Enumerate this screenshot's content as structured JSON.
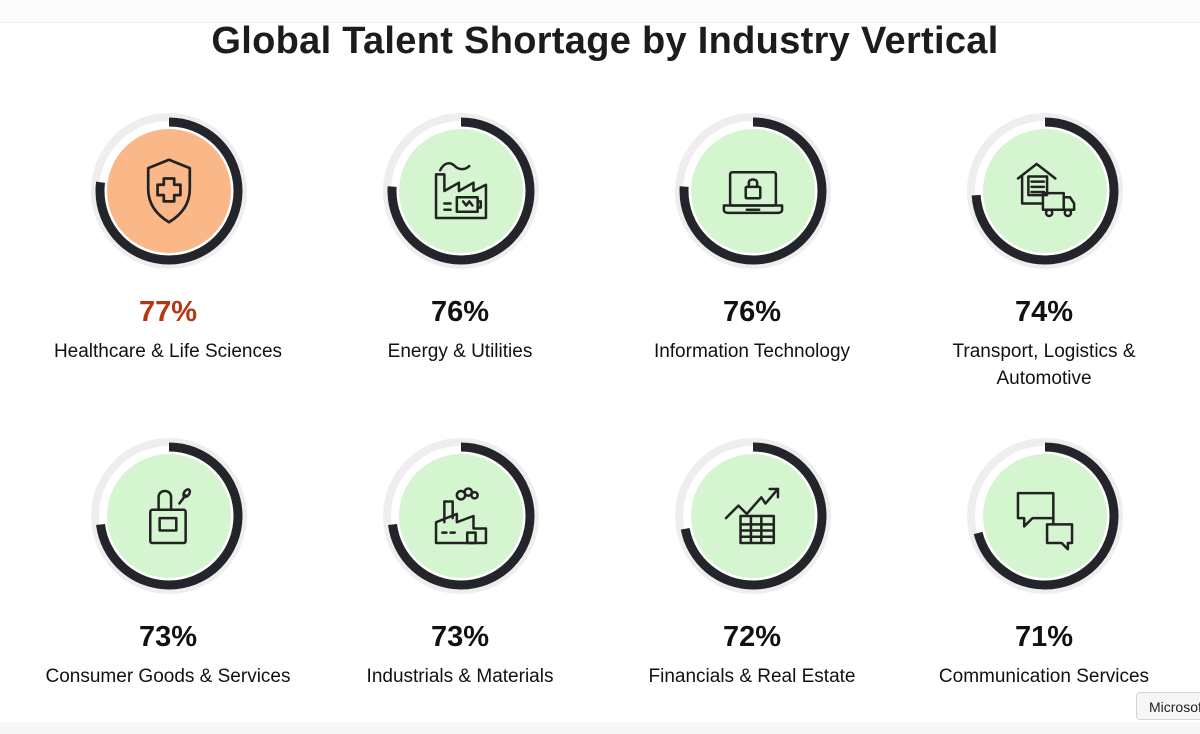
{
  "title": "Global Talent Shortage by Industry Vertical",
  "colors": {
    "ring_track": "#eeeeee",
    "ring_fill": "#24252b",
    "inner_default": "#d4f5cf",
    "inner_highlight": "#fab889",
    "value_highlight": "#b8360f",
    "value_default": "#111111"
  },
  "chart_data": {
    "type": "radial-progress",
    "title": "Global Talent Shortage by Industry Vertical",
    "unit": "%",
    "categories": [
      "Healthcare & Life Sciences",
      "Energy & Utilities",
      "Information Technology",
      "Transport, Logistics & Automotive",
      "Consumer Goods & Services",
      "Industrials & Materials",
      "Financials & Real Estate",
      "Communication Services"
    ],
    "values": [
      77,
      76,
      76,
      74,
      73,
      73,
      72,
      71
    ],
    "highlighted": "Healthcare & Life Sciences"
  },
  "items": [
    {
      "value_label": "77%",
      "label": "Healthcare & Life Sciences",
      "icon": "medical-shield-icon"
    },
    {
      "value_label": "76%",
      "label": "Energy & Utilities",
      "icon": "power-plant-battery-icon"
    },
    {
      "value_label": "76%",
      "label": "Information Technology",
      "icon": "laptop-lock-icon"
    },
    {
      "value_label": "74%",
      "label": "Transport, Logistics & Automotive",
      "icon": "warehouse-truck-icon"
    },
    {
      "value_label": "73%",
      "label": "Consumer Goods & Services",
      "icon": "shopping-bag-icon"
    },
    {
      "value_label": "73%",
      "label": "Industrials & Materials",
      "icon": "factory-icon"
    },
    {
      "value_label": "72%",
      "label": "Financials & Real Estate",
      "icon": "financial-chart-icon"
    },
    {
      "value_label": "71%",
      "label": "Communication Services",
      "icon": "chat-bubbles-icon"
    }
  ],
  "tooltip": "Microsoft"
}
